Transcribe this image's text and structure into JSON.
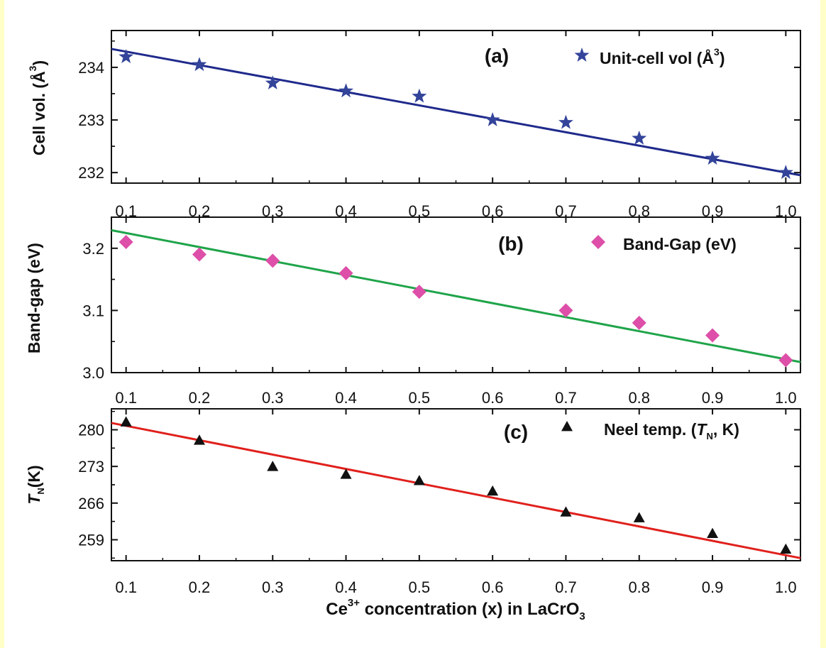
{
  "chart_data": [
    {
      "type": "scatter",
      "panel": "(a)",
      "ylabel": "Cell vol. (Å³)",
      "xlim": [
        0.08,
        1.02
      ],
      "ylim": [
        231.8,
        234.7
      ],
      "xticks": [
        "0.1",
        "0.2",
        "0.3",
        "0.4",
        "0.5",
        "0.6",
        "0.7",
        "0.8",
        "0.9",
        "1.0"
      ],
      "yticks": [
        "232",
        "233",
        "234"
      ],
      "legend_placement": "top-right",
      "marker": "star",
      "colors": {
        "marker": "#33449a",
        "line": "#1f2a8c"
      },
      "series": [
        {
          "name": "Unit-cell vol (Å³)",
          "x": [
            0.1,
            0.2,
            0.3,
            0.4,
            0.5,
            0.6,
            0.7,
            0.8,
            0.9,
            1.0
          ],
          "y": [
            234.2,
            234.05,
            233.7,
            233.55,
            233.45,
            233.0,
            232.95,
            232.65,
            232.27,
            232.0
          ]
        }
      ],
      "fit_line": {
        "x": [
          0.08,
          1.02
        ],
        "y": [
          234.35,
          231.95
        ]
      }
    },
    {
      "type": "scatter",
      "panel": "(b)",
      "ylabel": "Band-gap (eV)",
      "xlim": [
        0.08,
        1.02
      ],
      "ylim": [
        3.0,
        3.25
      ],
      "xticks": [
        "0.1",
        "0.2",
        "0.3",
        "0.4",
        "0.5",
        "0.6",
        "0.7",
        "0.8",
        "0.9",
        "1.0"
      ],
      "yticks": [
        "3.0",
        "3.1",
        "3.2"
      ],
      "legend_placement": "top-right",
      "marker": "diamond",
      "colors": {
        "marker": "#dd4fa8",
        "line": "#1fa44a"
      },
      "series": [
        {
          "name": "Band-Gap (eV)",
          "x": [
            0.1,
            0.2,
            0.3,
            0.4,
            0.5,
            0.7,
            0.8,
            0.9,
            1.0
          ],
          "y": [
            3.21,
            3.19,
            3.18,
            3.16,
            3.13,
            3.1,
            3.08,
            3.06,
            3.02
          ]
        }
      ],
      "fit_line": {
        "x": [
          0.08,
          1.02
        ],
        "y": [
          3.229,
          3.017
        ]
      }
    },
    {
      "type": "scatter",
      "panel": "(c)",
      "ylabel": "TN(K)",
      "xlabel": "Ce3+ concentration (x) in LaCrO3",
      "xlim": [
        0.08,
        1.02
      ],
      "ylim": [
        255,
        284
      ],
      "xticks": [
        "0.1",
        "0.2",
        "0.3",
        "0.4",
        "0.5",
        "0.6",
        "0.7",
        "0.8",
        "0.9",
        "1.0"
      ],
      "yticks": [
        "259",
        "266",
        "273",
        "280"
      ],
      "legend_placement": "top-right",
      "marker": "triangle",
      "colors": {
        "marker": "#111111",
        "line": "#e0201c"
      },
      "series": [
        {
          "name": "Neel temp. (TN, K)",
          "x": [
            0.1,
            0.2,
            0.3,
            0.4,
            0.5,
            0.6,
            0.7,
            0.8,
            0.9,
            1.0
          ],
          "y": [
            281.5,
            278,
            273,
            271.5,
            270.3,
            268.3,
            264.3,
            263.2,
            260.2,
            257.2
          ]
        }
      ],
      "fit_line": {
        "x": [
          0.08,
          1.02
        ],
        "y": [
          281.3,
          255.5
        ]
      }
    }
  ],
  "text": {
    "panel_a_label": "(a)",
    "panel_b_label": "(b)",
    "panel_c_label": "(c)",
    "ylabel_a": "Cell vol. (Å",
    "ylabel_a_sup": "3",
    "ylabel_a_end": ")",
    "ylabel_b": "Band-gap (eV)",
    "ylabel_c_T": "T",
    "ylabel_c_sub": "N",
    "ylabel_c_end": "(K)",
    "legend_a": "Unit-cell vol (Å",
    "legend_a_sup": "3",
    "legend_a_end": ")",
    "legend_b": "Band-Gap (eV)",
    "legend_c_pre": "Neel temp. (",
    "legend_c_T": "T",
    "legend_c_sub": "N",
    "legend_c_end": ", K)",
    "xlabel_pre": "Ce",
    "xlabel_sup": "3+",
    "xlabel_mid": " concentration (x) in LaCrO",
    "xlabel_sub": "3"
  }
}
